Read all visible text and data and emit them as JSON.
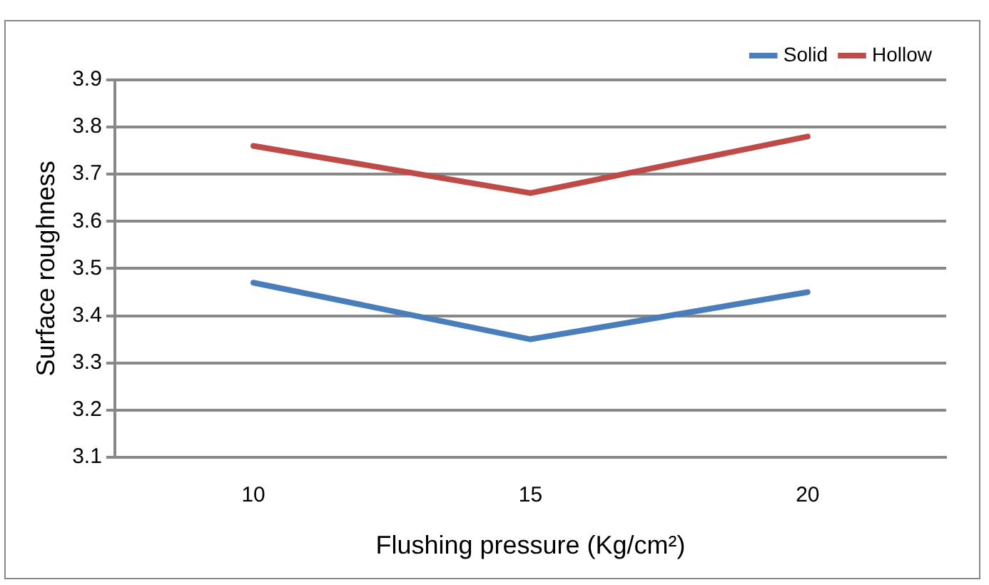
{
  "chart_data": {
    "type": "line",
    "xlabel": "Flushing pressure (Kg/cm²)",
    "ylabel": "Surface roughness",
    "categories": [
      "10",
      "15",
      "20"
    ],
    "series": [
      {
        "name": "Solid",
        "color": "#4a7ebb",
        "values": [
          3.47,
          3.35,
          3.45
        ]
      },
      {
        "name": "Hollow",
        "color": "#be4b48",
        "values": [
          3.76,
          3.66,
          3.78
        ]
      }
    ],
    "ylim": [
      3.1,
      3.9
    ],
    "yticks": [
      3.1,
      3.2,
      3.3,
      3.4,
      3.5,
      3.6,
      3.7,
      3.8,
      3.9
    ],
    "grid": "y",
    "legend": "top right",
    "marker": "none",
    "line_style": "solid"
  }
}
